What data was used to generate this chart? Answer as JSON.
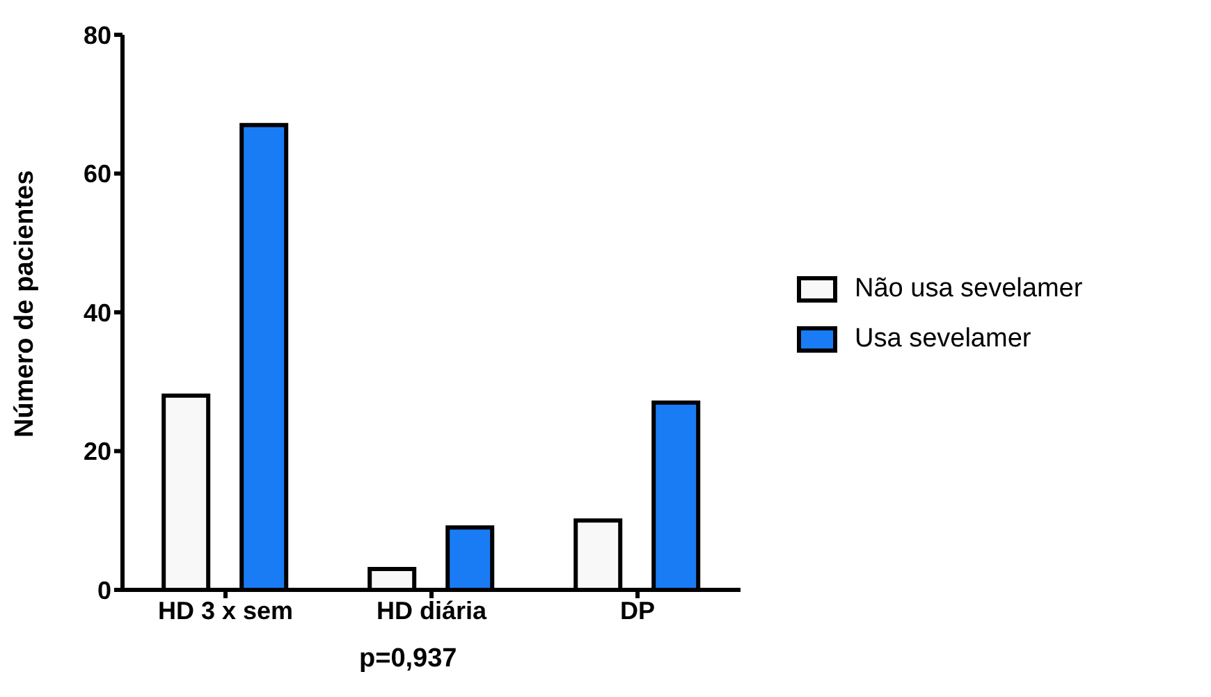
{
  "chart_data": {
    "type": "bar",
    "ylabel": "Número de pacientes",
    "categories": [
      "HD 3 x sem",
      "HD diária",
      "DP"
    ],
    "series": [
      {
        "name": "Não usa sevelamer",
        "color": "#f8f8f8",
        "values": [
          28,
          3,
          10
        ]
      },
      {
        "name": "Usa sevelamer",
        "color": "#1a7cf5",
        "values": [
          67,
          9,
          27
        ]
      }
    ],
    "ylim": [
      0,
      80
    ],
    "yticks": [
      0,
      20,
      40,
      60,
      80
    ],
    "grid": false,
    "legend": "right",
    "annotations": [
      "p=0,937"
    ]
  }
}
